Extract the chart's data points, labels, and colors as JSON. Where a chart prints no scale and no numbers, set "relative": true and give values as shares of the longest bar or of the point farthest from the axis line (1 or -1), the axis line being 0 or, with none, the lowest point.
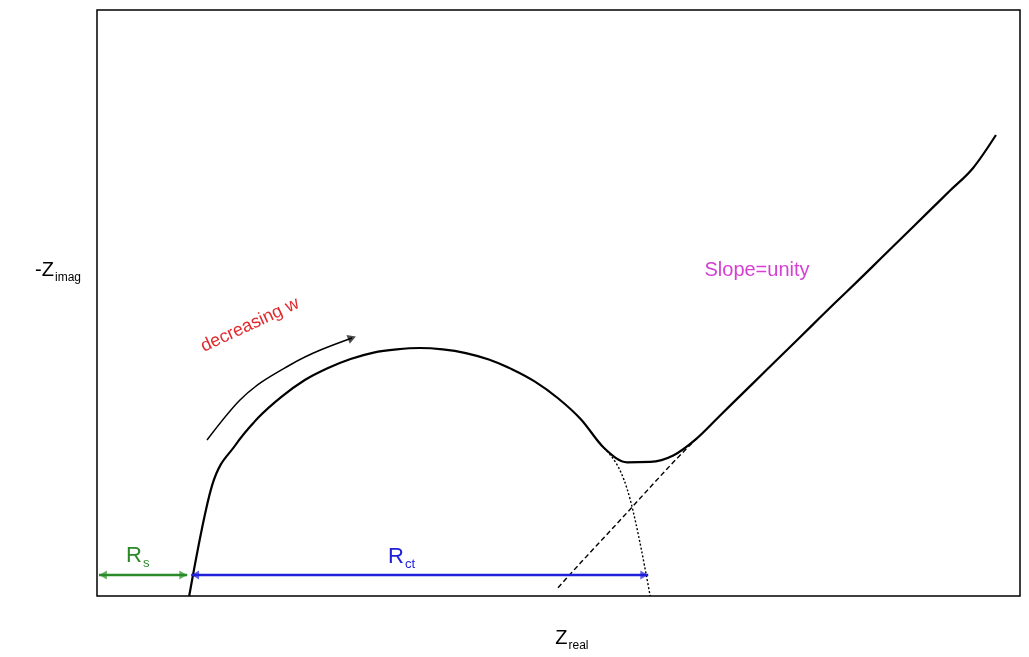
{
  "chart_data": {
    "type": "line",
    "relative": true,
    "xlabel": "Z$_{real}$",
    "ylabel": "-Z$_{imag}$",
    "marker": "none",
    "annotations": [
      "decreasing w",
      "Slope=unity",
      "R$_{s}$",
      "R$_{ct}$"
    ],
    "categories": [
      null,
      null,
      null,
      null,
      null,
      null,
      null,
      null,
      null,
      null,
      null,
      null,
      null,
      null,
      null,
      null,
      null,
      null,
      null,
      null,
      null,
      null,
      null,
      null,
      null,
      null,
      null,
      null,
      null,
      null,
      null,
      null,
      null,
      null,
      null,
      null,
      null,
      null,
      null,
      null
    ],
    "series": [
      {
        "color": "#000000",
        "line_style": "solid",
        "values": [
          null,
          null,
          null,
          null,
          0,
          0.241,
          0.327,
          0.387,
          0.432,
          0.468,
          0.494,
          0.514,
          0.528,
          0.535,
          0.538,
          0.535,
          0.527,
          0.513,
          0.492,
          0.465,
          0.429,
          0.383,
          0.321,
          0.29,
          0.291,
          0.305,
          0.341,
          0.39,
          0.439,
          0.488,
          0.537,
          0.586,
          0.635,
          0.683,
          0.732,
          0.781,
          0.83,
          0.879,
          0.928,
          1.0
        ]
      },
      {
        "color": "#000000",
        "line_style": "dotted",
        "values": [
          null,
          null,
          null,
          null,
          null,
          null,
          null,
          null,
          null,
          null,
          null,
          null,
          null,
          null,
          null,
          null,
          null,
          null,
          null,
          null,
          null,
          null,
          0.321,
          0.232,
          0,
          null,
          null,
          null,
          null,
          null,
          null,
          null,
          null,
          null,
          null,
          null,
          null,
          null,
          null,
          null
        ]
      },
      {
        "color": "#000000",
        "line_style": "dashed",
        "values": [
          null,
          null,
          null,
          null,
          null,
          null,
          null,
          null,
          null,
          null,
          null,
          null,
          null,
          null,
          null,
          null,
          null,
          null,
          null,
          null,
          0.018,
          0.073,
          0.127,
          0.181,
          0.236,
          0.29,
          0.341,
          null,
          null,
          null,
          null,
          null,
          null,
          null,
          null,
          null,
          null,
          null,
          null,
          null
        ]
      }
    ]
  }
}
